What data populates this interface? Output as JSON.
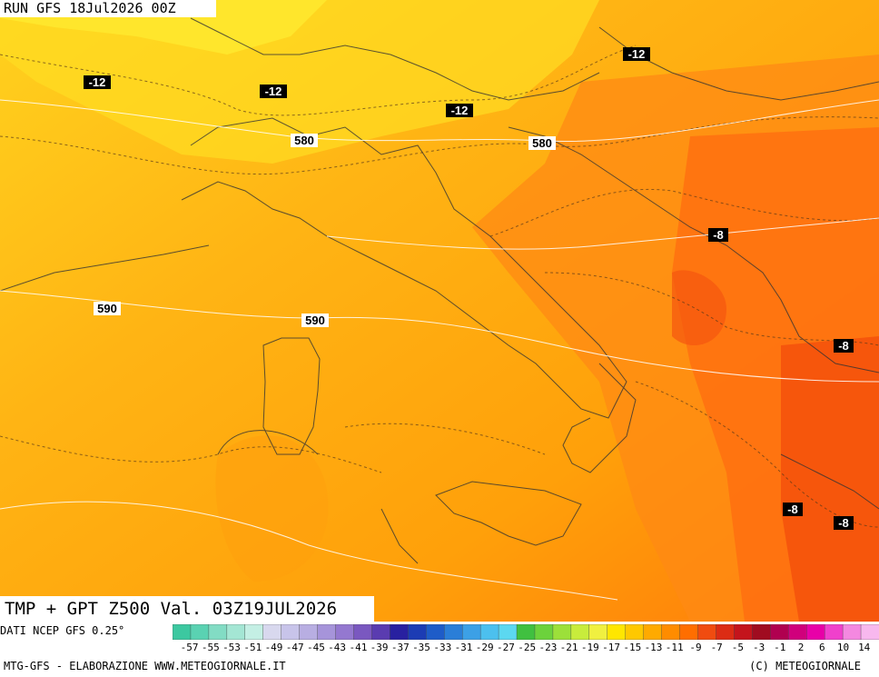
{
  "header": {
    "run_label": "RUN GFS 18Jul2026 00Z"
  },
  "title": {
    "text": "TMP + GPT Z500 Val. 03Z19JUL2026"
  },
  "contour_labels": {
    "temperature": [
      "-12",
      "-12",
      "-12",
      "-12",
      "-8",
      "-8",
      "-8",
      "-8"
    ],
    "geopotential": [
      "580",
      "580",
      "590",
      "590"
    ]
  },
  "legend": {
    "source": "DATI NCEP GFS 0.25°",
    "ticks": [
      "-57",
      "-55",
      "-53",
      "-51",
      "-49",
      "-47",
      "-45",
      "-43",
      "-41",
      "-39",
      "-37",
      "-35",
      "-33",
      "-31",
      "-29",
      "-27",
      "-25",
      "-23",
      "-21",
      "-19",
      "-17",
      "-15",
      "-13",
      "-11",
      "-9",
      "-7",
      "-5",
      "-3",
      "-1",
      "2",
      "6",
      "10",
      "14"
    ],
    "colors": [
      "#3cc8a0",
      "#5ad2b2",
      "#82dcc4",
      "#a4e6d4",
      "#c4efe4",
      "#d8d8ee",
      "#c8c4ea",
      "#b8aee2",
      "#a694da",
      "#9478d0",
      "#7a58c0",
      "#5a3cb0",
      "#2820a0",
      "#1c3cb4",
      "#1e5cc8",
      "#2a7ed8",
      "#3ca0e6",
      "#4cc0ee",
      "#5cd8f0",
      "#40c040",
      "#6cd23c",
      "#9ce03a",
      "#c8ec3c",
      "#f0f040",
      "#ffe600",
      "#ffc800",
      "#ffaa00",
      "#ff8c00",
      "#ff6e00",
      "#f04c10",
      "#dc2c14",
      "#c4141c",
      "#a00c20",
      "#b00050",
      "#d0007c",
      "#e800a8",
      "#f040cc",
      "#f488e0",
      "#f8b8ee"
    ]
  },
  "footer": {
    "left": "MTG-GFS - ELABORAZIONE WWW.METEOGIORNALE.IT",
    "right": "(C) METEOGIORNALE"
  }
}
